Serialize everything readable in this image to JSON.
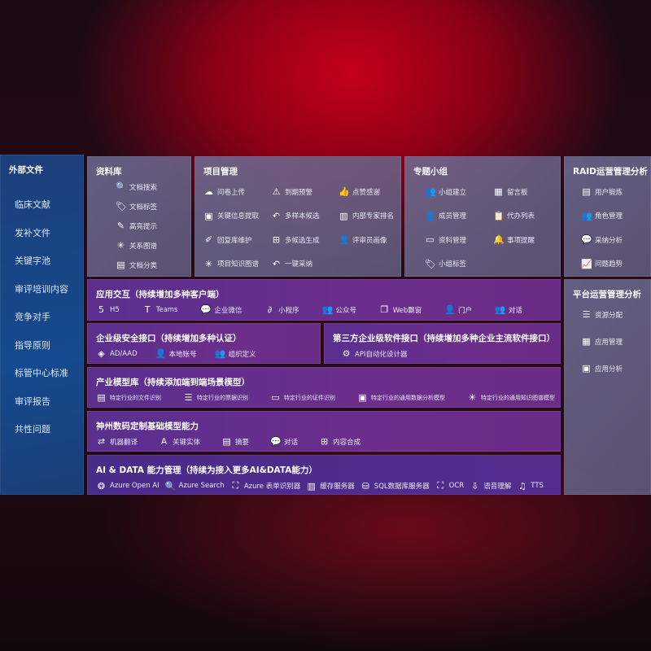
{
  "sidebar": {
    "title": "外部文件",
    "items": [
      "临床文献",
      "发补文件",
      "关键字池",
      "审评培训内容",
      "竞争对手",
      "指导原则",
      "标管中心标准",
      "审评报告",
      "共性问题"
    ]
  },
  "library": {
    "title": "资料库",
    "items": [
      {
        "icon": "doc-search-icon",
        "g": "🔍",
        "label": "文档搜索"
      },
      {
        "icon": "tag-icon",
        "g": "🏷",
        "label": "文档标签"
      },
      {
        "icon": "highlight-pen-icon",
        "g": "✎",
        "label": "高亮提示"
      },
      {
        "icon": "graph-icon",
        "g": "✳",
        "label": "关系图谱"
      },
      {
        "icon": "doc-category-icon",
        "g": "▤",
        "label": "文档分类"
      }
    ]
  },
  "project": {
    "title": "项目管理",
    "items": [
      {
        "icon": "cloud-upload-icon",
        "g": "☁",
        "label": "问卷上传"
      },
      {
        "icon": "alarm-icon",
        "g": "⚠",
        "label": "到期预警"
      },
      {
        "icon": "thumbs-up-icon",
        "g": "👍",
        "label": "点赞感谢"
      },
      {
        "icon": "extract-icon",
        "g": "▣",
        "label": "关键信息提取"
      },
      {
        "icon": "reply-icon",
        "g": "↶",
        "label": "多样本候选"
      },
      {
        "icon": "ranking-icon",
        "g": "▥",
        "label": "内部专家排名"
      },
      {
        "icon": "edit-icon",
        "g": "✐",
        "label": "回复库维护"
      },
      {
        "icon": "puzzle-icon",
        "g": "⊞",
        "label": "多候选生成"
      },
      {
        "icon": "person-icon",
        "g": "👤",
        "label": "评审员画像"
      },
      {
        "icon": "knowledge-graph-icon",
        "g": "✳",
        "label": "项目知识图谱"
      },
      {
        "icon": "reply-icon",
        "g": "↶",
        "label": "一键采纳"
      }
    ]
  },
  "group": {
    "title": "专题小组",
    "items": [
      {
        "icon": "group-icon",
        "g": "👥",
        "label": "小组建立"
      },
      {
        "icon": "bbs-icon",
        "g": "▦",
        "label": "留言板"
      },
      {
        "icon": "add-user-icon",
        "g": "👤",
        "label": "成员管理"
      },
      {
        "icon": "clipboard-icon",
        "g": "📋",
        "label": "代办列表"
      },
      {
        "icon": "folder-icon",
        "g": "▭",
        "label": "资料管理"
      },
      {
        "icon": "bell-icon",
        "g": "🔔",
        "label": "事项提醒"
      },
      {
        "icon": "tag-icon",
        "g": "🏷",
        "label": "小组标签"
      }
    ]
  },
  "raid": {
    "title": "RAID运营管理分析",
    "items": [
      {
        "icon": "id-card-icon",
        "g": "▤",
        "label": "用户锻炼"
      },
      {
        "icon": "users-icon",
        "g": "👥",
        "label": "角色管理"
      },
      {
        "icon": "qa-icon",
        "g": "💬",
        "label": "采纳分析"
      },
      {
        "icon": "trend-icon",
        "g": "📈",
        "label": "问题趋势"
      }
    ]
  },
  "platform": {
    "title": "平台运营管理分析",
    "items": [
      {
        "icon": "checklist-icon",
        "g": "☰",
        "label": "资源分配"
      },
      {
        "icon": "apps-icon",
        "g": "▦",
        "label": "应用管理"
      },
      {
        "icon": "analytics-icon",
        "g": "▣",
        "label": "应用分析"
      }
    ]
  },
  "interaction": {
    "title": "应用交互（持续增加多种客户端）",
    "items": [
      {
        "icon": "html5-icon",
        "g": "5",
        "label": "H5"
      },
      {
        "icon": "teams-icon",
        "g": "T",
        "label": "Teams"
      },
      {
        "icon": "wechat-work-icon",
        "g": "💬",
        "label": "企业微信"
      },
      {
        "icon": "miniprogram-icon",
        "g": "∂",
        "label": "小程序"
      },
      {
        "icon": "official-account-icon",
        "g": "👥",
        "label": "公众号"
      },
      {
        "icon": "web-window-icon",
        "g": "❐",
        "label": "Web飘窗"
      },
      {
        "icon": "portal-icon",
        "g": "👤",
        "label": "门户"
      },
      {
        "icon": "dialog-icon",
        "g": "👥",
        "label": "对话"
      }
    ]
  },
  "security": {
    "title": "企业级安全接口（持续增加多种认证）",
    "items": [
      {
        "icon": "aad-icon",
        "g": "◈",
        "label": "AD/AAD"
      },
      {
        "icon": "local-account-icon",
        "g": "👤",
        "label": "本地账号"
      },
      {
        "icon": "org-icon",
        "g": "👥",
        "label": "组织定义"
      }
    ]
  },
  "thirdparty": {
    "title": "第三方企业级软件接口（持续增加多种企业主流软件接口）",
    "items": [
      {
        "icon": "gear-icon",
        "g": "⚙",
        "label": "API自动化设计器"
      }
    ]
  },
  "industry": {
    "title": "产业模型库（持续添加端到端场景模型）",
    "items": [
      {
        "icon": "file-icon",
        "g": "▤",
        "label": "特定行业的文件识别"
      },
      {
        "icon": "receipt-icon",
        "g": "☰",
        "label": "特定行业的票据识别"
      },
      {
        "icon": "id-card-icon",
        "g": "▭",
        "label": "特定行业的证件识别"
      },
      {
        "icon": "chart-icon",
        "g": "▣",
        "label": "特定行业的通用数据分析模型"
      },
      {
        "icon": "knowledge-graph-icon",
        "g": "✳",
        "label": "特定行业的通用知识图谱模型"
      }
    ]
  },
  "base": {
    "title": "神州数码定制基础模型能力",
    "items": [
      {
        "icon": "translate-icon",
        "g": "⇄",
        "label": "机器翻译"
      },
      {
        "icon": "entity-icon",
        "g": "A",
        "label": "关键实体"
      },
      {
        "icon": "summary-icon",
        "g": "▤",
        "label": "摘要"
      },
      {
        "icon": "chat-icon",
        "g": "💬",
        "label": "对话"
      },
      {
        "icon": "compose-icon",
        "g": "⊞",
        "label": "内容合成"
      }
    ]
  },
  "aidata": {
    "title": "AI & DATA 能力管理（持续为接入更多AI&DATA能力）",
    "items": [
      {
        "icon": "openai-icon",
        "g": "❂",
        "label": "Azure Open AI"
      },
      {
        "icon": "azure-search-icon",
        "g": "🔍",
        "label": "Azure Search"
      },
      {
        "icon": "form-recognizer-icon",
        "g": "⛶",
        "label": "Azure 表单识别器"
      },
      {
        "icon": "cache-server-icon",
        "g": "▥",
        "label": "缓存服务器"
      },
      {
        "icon": "sql-icon",
        "g": "⛁",
        "label": "SQL数据库服务器"
      },
      {
        "icon": "ocr-icon",
        "g": "⛶",
        "label": "OCR"
      },
      {
        "icon": "speech-icon",
        "g": "⇩",
        "label": "语音理解"
      },
      {
        "icon": "tts-icon",
        "g": "♫",
        "label": "TTS"
      }
    ]
  }
}
